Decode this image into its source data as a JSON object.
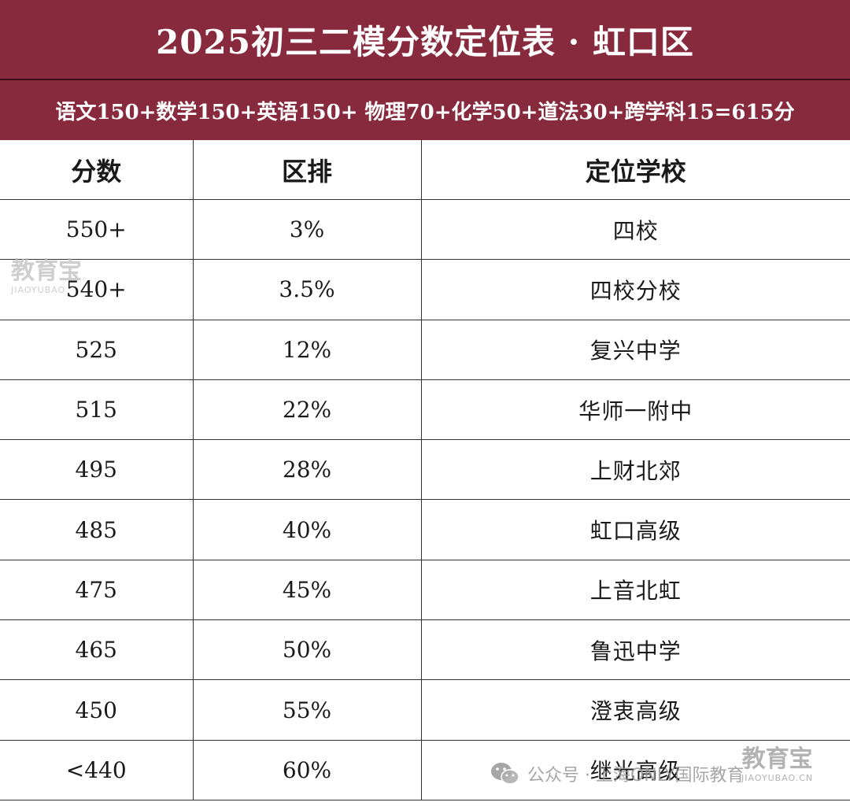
{
  "header": {
    "title": "2025初三二模分数定位表 · 虹口区",
    "subtitle": "语文150+数学150+英语150+ 物理70+化学50+道法30+跨学科15=615分"
  },
  "table": {
    "columns": [
      "分数",
      "区排",
      "定位学校"
    ],
    "rows": [
      {
        "score": "550+",
        "rank": "3%",
        "school": "四校"
      },
      {
        "score": "540+",
        "rank": "3.5%",
        "school": "四校分校"
      },
      {
        "score": "525",
        "rank": "12%",
        "school": "复兴中学"
      },
      {
        "score": "515",
        "rank": "22%",
        "school": "华师一附中"
      },
      {
        "score": "495",
        "rank": "28%",
        "school": "上财北郊"
      },
      {
        "score": "485",
        "rank": "40%",
        "school": "虹口高级"
      },
      {
        "score": "475",
        "rank": "45%",
        "school": "上音北虹"
      },
      {
        "score": "465",
        "rank": "50%",
        "school": "鲁迅中学"
      },
      {
        "score": "450",
        "rank": "55%",
        "school": "澄衷高级"
      },
      {
        "score": "<440",
        "rank": "60%",
        "school": "继光高级"
      }
    ]
  },
  "watermark": {
    "brand_cn": "教育宝",
    "brand_en": "JIAOYUBAO",
    "brand_url": "JIAOYUBAO.CN",
    "account": "公众号 · 上海ONLY国际教育",
    "icon": "wechat-icon"
  },
  "colors": {
    "header_bg": "#882a3e",
    "divider": "#3d0f1a",
    "grid": "#333333"
  }
}
